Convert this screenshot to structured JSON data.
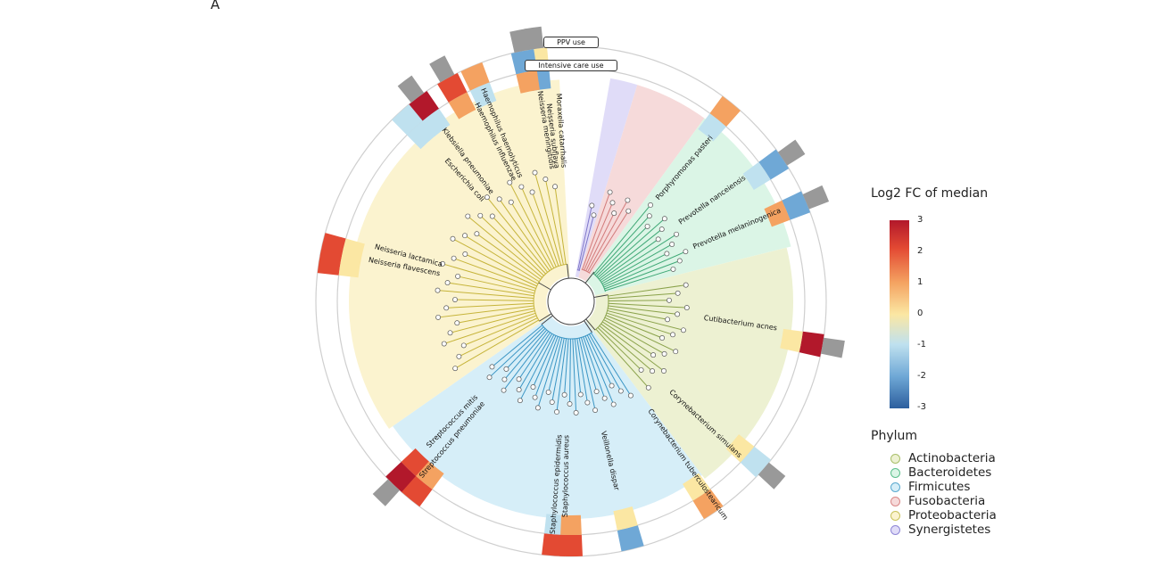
{
  "panel_label": "A",
  "track_labels": {
    "ppv": "PPV use",
    "icu": "Intensive care use"
  },
  "color_scale": {
    "title": "Log2 FC of median",
    "ticks": [
      "3",
      "2",
      "1",
      "0",
      "-1",
      "-2",
      "-3"
    ],
    "colors": [
      "#b2182b",
      "#e34a33",
      "#f4a261",
      "#fbe7a3",
      "#bfe1ef",
      "#6fa8d6",
      "#2c5f9e"
    ]
  },
  "phylum_legend": {
    "title": "Phylum",
    "items": [
      {
        "label": "Actinobacteria",
        "color": "#a9bf6a",
        "fill": "#edf1d2"
      },
      {
        "label": "Bacteroidetes",
        "color": "#5bbf8c",
        "fill": "#dbf5e6"
      },
      {
        "label": "Firmicutes",
        "color": "#5aa9cf",
        "fill": "#d6eef8"
      },
      {
        "label": "Fusobacteria",
        "color": "#d98888",
        "fill": "#f6dada"
      },
      {
        "label": "Proteobacteria",
        "color": "#c8c25a",
        "fill": "#fbf3cf"
      },
      {
        "label": "Synergistetes",
        "color": "#8f86d6",
        "fill": "#e0dcf8"
      }
    ]
  },
  "taxa": {
    "moraxella": "Moraxella catarrhalis",
    "neisseria_subflava": "Neisseria subflava",
    "neisseria_meningitidis": "Neisseria meningitidis",
    "haemophilus_haemolyticus": "Haemophilus haemolyticus",
    "haemophilus_influenzae": "Haemophilus influenzae",
    "klebsiella": "Klebsiella pneumoniae",
    "escherichia": "Escherichia coli",
    "neisseria_lactamica": "Neisseria lactamica",
    "neisseria_flavescens": "Neisseria flavescens",
    "porphyromonas": "Porphyromonas pasteri",
    "prevotella_nanceiensis": "Prevotella nanceiensis",
    "prevotella_melaninogenica": "Prevotella melaninogenica",
    "cutibacterium": "Cutibacterium acnes",
    "corynebacterium_simulans": "Corynebacterium simulans",
    "corynebacterium_tubercu": "Corynebacterium tuberculostearicum",
    "staph_epidermidis": "Staphylococcus epidermidis",
    "staph_aureus": "Staphylococcus aureus",
    "strep_mitis": "Streptococcus mitis",
    "strep_pneumoniae": "Streptococcus pneumoniae",
    "veillonella": "Veillonella dispar"
  },
  "fold_change_bars": [
    {
      "tip": "moraxella",
      "ppv": 0.4,
      "icu": -2.0,
      "grey": true
    },
    {
      "tip": "neisseria_subflava",
      "ppv": -2.2,
      "icu": 1.0,
      "grey": true
    },
    {
      "tip": "haemophilus_haemolyticus",
      "ppv": 1.2,
      "icu": -1.4,
      "grey": false
    },
    {
      "tip": "haemophilus_influenzae",
      "ppv": 2.5,
      "icu": 1.0,
      "grey": true
    },
    {
      "tip": "klebsiella",
      "ppv": 2.6,
      "icu": -1.0,
      "grey": true
    },
    {
      "tip": "escherichia",
      "ppv": -1.0,
      "icu": -0.6,
      "grey": false
    },
    {
      "tip": "neisseria_lactamica",
      "ppv": 1.6,
      "icu": 0.3,
      "grey": false
    },
    {
      "tip": "neisseria_flavescens",
      "ppv": 2.0,
      "icu": 0.2,
      "grey": false
    },
    {
      "tip": "strep_mitis",
      "ppv": 2.6,
      "icu": 1.6,
      "grey": true
    },
    {
      "tip": "strep_pneumoniae",
      "ppv": 2.0,
      "icu": 1.0,
      "grey": false
    },
    {
      "tip": "staph_epidermidis",
      "ppv": 2.4,
      "icu": -0.8,
      "grey": false
    },
    {
      "tip": "staph_aureus",
      "ppv": 2.2,
      "icu": 1.2,
      "grey": false
    },
    {
      "tip": "veillonella",
      "ppv": -2.2,
      "icu": 0.0,
      "grey": false
    },
    {
      "tip": "corynebacterium_tubercu",
      "ppv": 1.4,
      "icu": -0.4,
      "grey": false
    },
    {
      "tip": "corynebacterium_simulans",
      "ppv": -0.8,
      "icu": -0.4,
      "grey": true
    },
    {
      "tip": "cutibacterium",
      "ppv": 2.8,
      "icu": 0.1,
      "grey": true
    },
    {
      "tip": "prevotella_melaninogenica",
      "ppv": -1.6,
      "icu": 1.2,
      "grey": true
    },
    {
      "tip": "prevotella_nanceiensis",
      "ppv": -2.4,
      "icu": -0.8,
      "grey": true
    },
    {
      "tip": "porphyromonas",
      "ppv": 1.2,
      "icu": -1.0,
      "grey": false
    }
  ]
}
